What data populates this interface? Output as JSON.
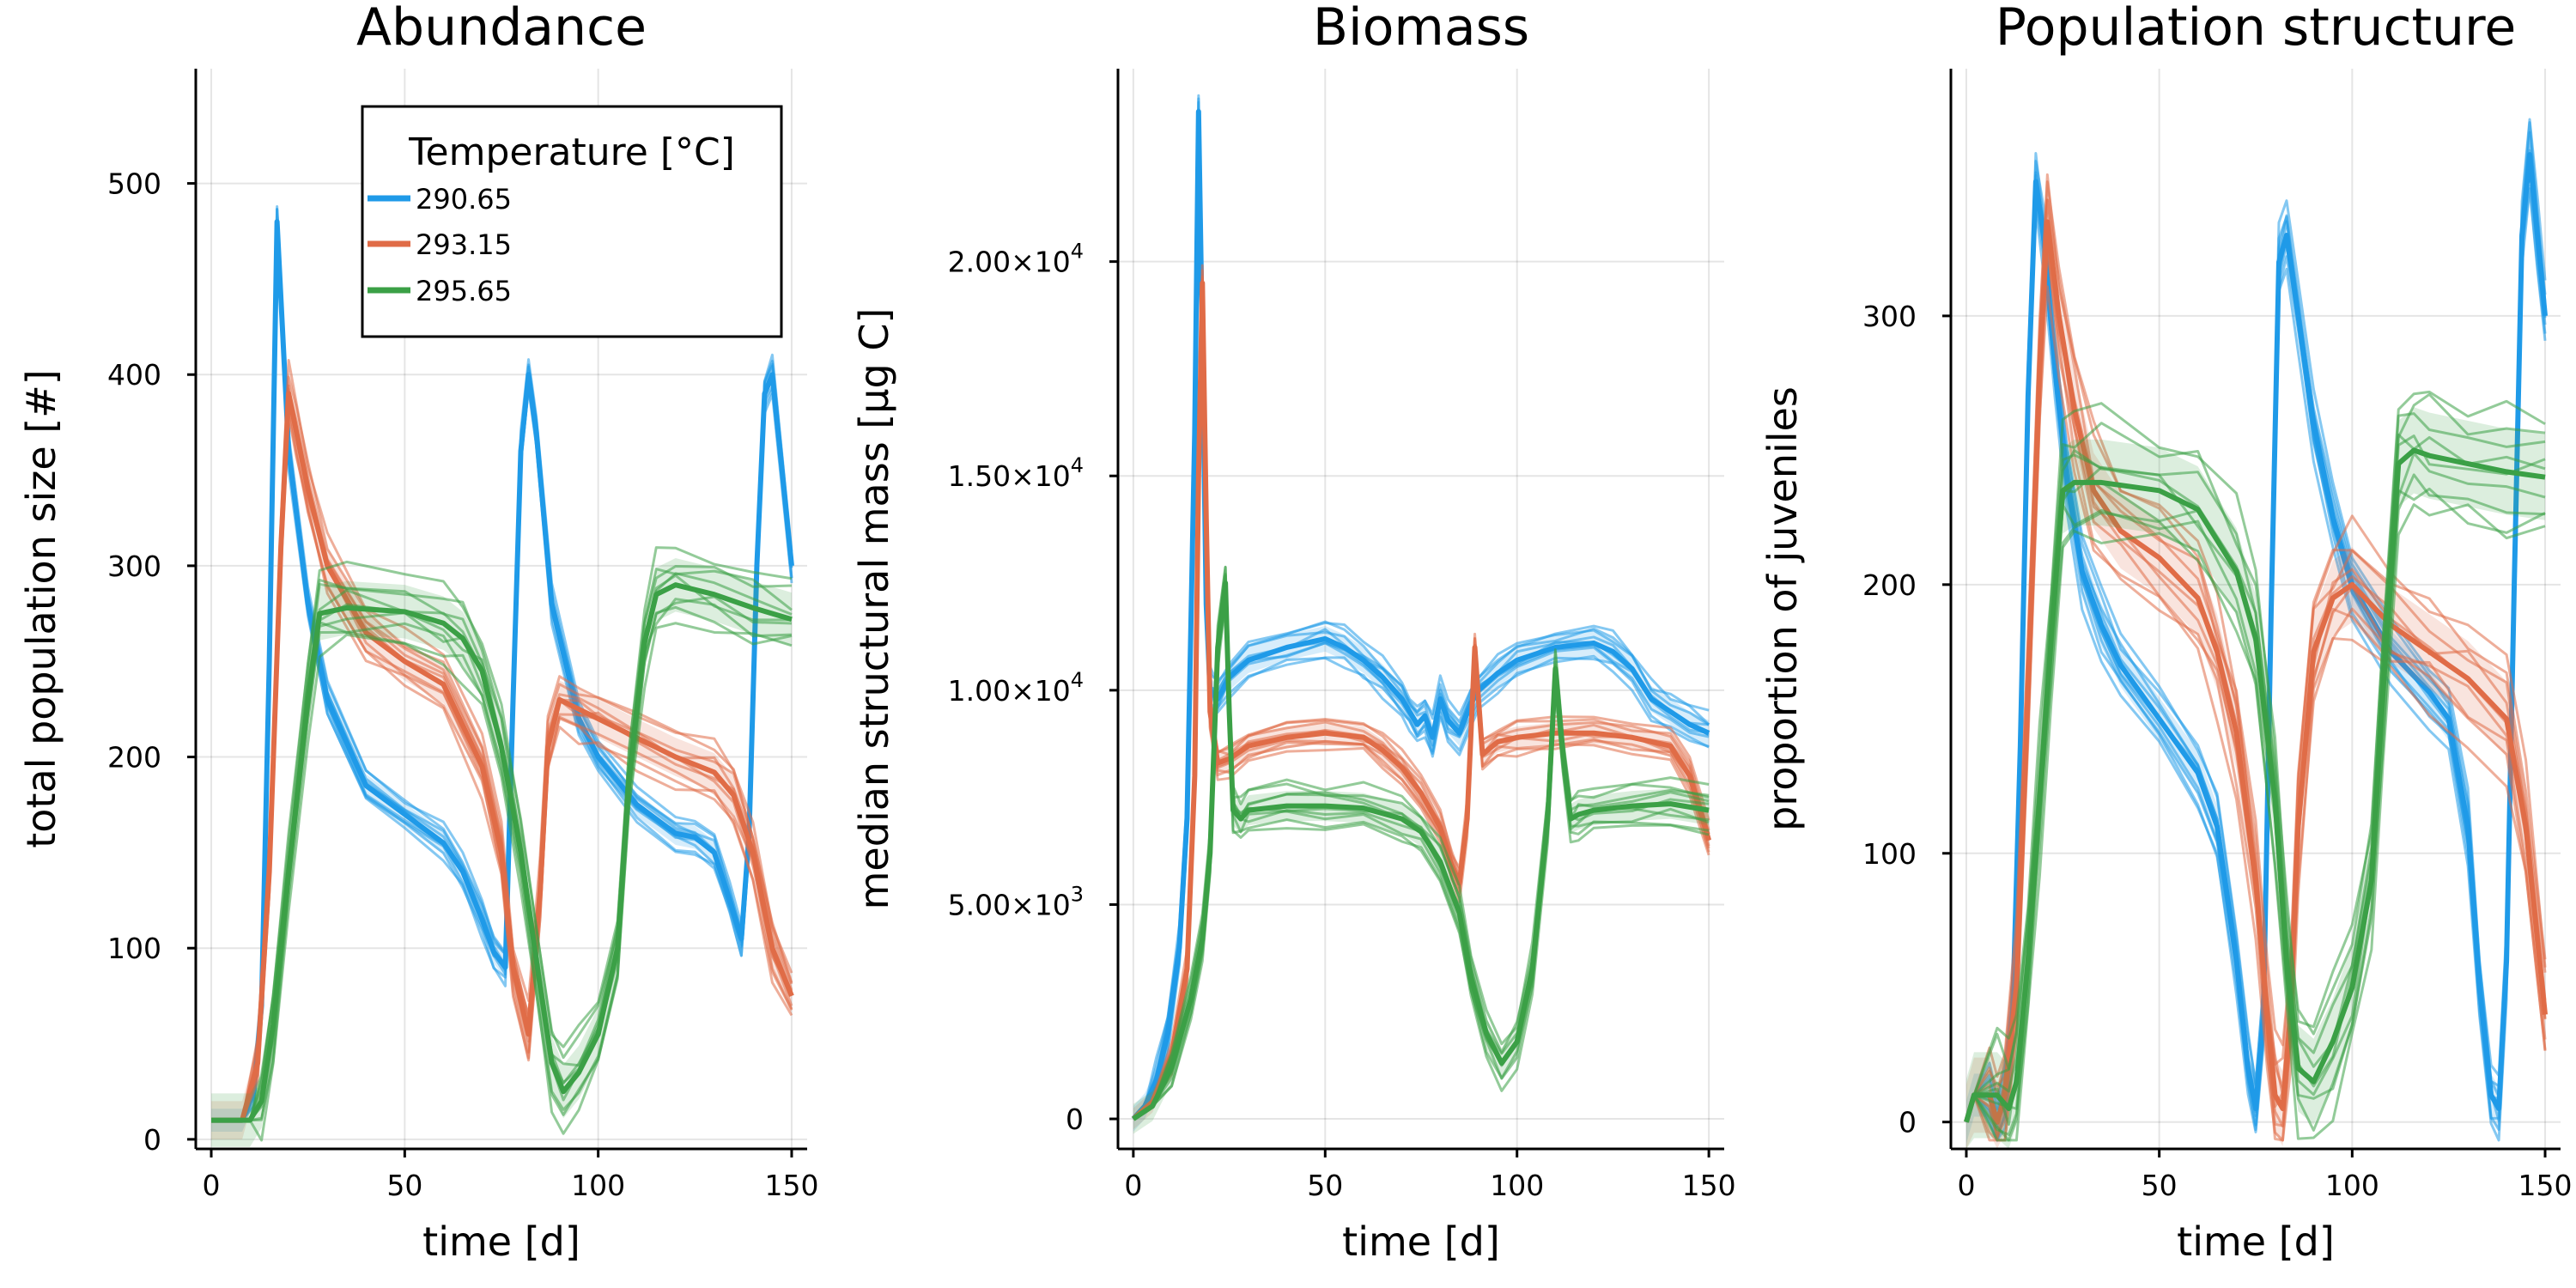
{
  "chart_data": [
    {
      "type": "line",
      "title": "Abundance",
      "xlabel": "time [d]",
      "ylabel": "total population size [#]",
      "xlim": [
        -4,
        154
      ],
      "ylim": [
        -5,
        560
      ],
      "xticks": [
        0,
        50,
        100,
        150
      ],
      "yticks": [
        0,
        100,
        200,
        300,
        400,
        500
      ],
      "ytick_labels": [
        "0",
        "100",
        "200",
        "300",
        "400",
        "500"
      ],
      "grid": true,
      "legend": {
        "title": "Temperature [°C]",
        "placement": "top-right"
      },
      "series": [
        {
          "name": "290.65",
          "color": "#1f9ae8",
          "band": 6,
          "x": [
            0,
            8,
            11,
            13,
            15,
            17,
            20,
            25,
            30,
            40,
            50,
            60,
            65,
            70,
            73,
            76,
            78,
            80,
            82,
            84,
            88,
            95,
            100,
            110,
            120,
            125,
            130,
            134,
            137,
            139,
            141,
            143,
            145,
            148,
            150
          ],
          "y": [
            10,
            10,
            25,
            70,
            250,
            480,
            360,
            280,
            230,
            185,
            170,
            155,
            140,
            115,
            98,
            90,
            230,
            360,
            400,
            370,
            280,
            220,
            200,
            175,
            160,
            158,
            150,
            125,
            105,
            160,
            300,
            390,
            400,
            340,
            300
          ]
        },
        {
          "name": "293.15",
          "color": "#e06c47",
          "band": 10,
          "x": [
            0,
            8,
            12,
            15,
            18,
            20,
            22,
            25,
            30,
            40,
            50,
            60,
            70,
            75,
            78,
            82,
            85,
            87,
            90,
            95,
            100,
            110,
            120,
            130,
            135,
            140,
            145,
            150
          ],
          "y": [
            10,
            10,
            40,
            140,
            310,
            390,
            370,
            340,
            300,
            265,
            250,
            238,
            195,
            150,
            90,
            55,
            130,
            205,
            230,
            225,
            220,
            210,
            200,
            192,
            180,
            150,
            100,
            75
          ]
        },
        {
          "name": "295.65",
          "color": "#3ba046",
          "band": 14,
          "x": [
            0,
            10,
            13,
            16,
            20,
            25,
            28,
            35,
            50,
            60,
            65,
            70,
            75,
            80,
            85,
            88,
            91,
            95,
            100,
            105,
            108,
            112,
            115,
            120,
            130,
            140,
            150
          ],
          "y": [
            10,
            10,
            20,
            60,
            140,
            230,
            275,
            278,
            276,
            270,
            262,
            245,
            205,
            150,
            80,
            40,
            25,
            35,
            55,
            100,
            190,
            260,
            285,
            290,
            285,
            278,
            272
          ]
        }
      ]
    },
    {
      "type": "line",
      "title": "Biomass",
      "xlabel": "time [d]",
      "ylabel": "median structural mass [μg C]",
      "xlim": [
        -4,
        154
      ],
      "ylim": [
        -700,
        24500
      ],
      "xticks": [
        0,
        50,
        100,
        150
      ],
      "yticks": [
        0,
        5000,
        10000,
        15000,
        20000
      ],
      "ytick_labels": [
        "0",
        "5.00×10",
        "1.00×10",
        "1.50×10",
        "2.00×10"
      ],
      "ytick_exponents": [
        "",
        "3",
        "4",
        "4",
        "4"
      ],
      "grid": true,
      "series": [
        {
          "name": "290.65",
          "color": "#1f9ae8",
          "band": 300,
          "x": [
            0,
            3,
            6,
            9,
            12,
            14,
            16,
            17,
            18,
            19,
            20,
            22,
            25,
            30,
            40,
            50,
            55,
            60,
            65,
            70,
            72,
            74,
            76,
            78,
            80,
            82,
            85,
            88,
            90,
            95,
            100,
            110,
            120,
            125,
            130,
            135,
            140,
            145,
            150
          ],
          "y": [
            0,
            300,
            900,
            2000,
            4000,
            7000,
            16000,
            23500,
            18000,
            12000,
            10000,
            9800,
            10300,
            10700,
            11000,
            11200,
            11000,
            10700,
            10300,
            9800,
            9500,
            9200,
            9400,
            8900,
            9800,
            9300,
            9000,
            9700,
            10000,
            10400,
            10700,
            11000,
            11100,
            10900,
            10500,
            9800,
            9500,
            9200,
            9000
          ]
        },
        {
          "name": "293.15",
          "color": "#e06c47",
          "band": 250,
          "x": [
            0,
            5,
            10,
            14,
            16,
            17,
            18,
            19,
            20,
            22,
            25,
            30,
            40,
            50,
            60,
            65,
            70,
            75,
            80,
            83,
            85,
            87,
            89,
            91,
            95,
            100,
            110,
            120,
            130,
            140,
            145,
            150
          ],
          "y": [
            0,
            400,
            1500,
            3500,
            8000,
            15000,
            19500,
            14000,
            9500,
            8300,
            8400,
            8700,
            8900,
            9000,
            8900,
            8600,
            8200,
            7600,
            6800,
            5900,
            5500,
            7000,
            11000,
            8500,
            8800,
            8900,
            9000,
            9000,
            8900,
            8700,
            8000,
            6500
          ]
        },
        {
          "name": "295.65",
          "color": "#3ba046",
          "band": 350,
          "x": [
            0,
            5,
            10,
            15,
            18,
            20,
            22,
            24,
            25,
            26,
            28,
            30,
            40,
            50,
            60,
            70,
            75,
            80,
            85,
            88,
            92,
            96,
            100,
            104,
            108,
            110,
            112,
            114,
            116,
            120,
            130,
            140,
            150
          ],
          "y": [
            0,
            300,
            1200,
            2800,
            4200,
            6200,
            11000,
            12500,
            9500,
            7200,
            7000,
            7200,
            7300,
            7300,
            7250,
            7000,
            6700,
            6000,
            4800,
            3300,
            2000,
            1300,
            1800,
            3500,
            7000,
            10500,
            8500,
            7000,
            7100,
            7200,
            7300,
            7350,
            7200
          ]
        }
      ]
    },
    {
      "type": "line",
      "title": "Population structure",
      "xlabel": "time [d]",
      "ylabel": "proportion of juveniles",
      "xlim": [
        -4,
        154
      ],
      "ylim": [
        -10,
        392
      ],
      "xticks": [
        0,
        50,
        100,
        150
      ],
      "yticks": [
        0,
        100,
        200,
        300
      ],
      "ytick_labels": [
        "0",
        "100",
        "200",
        "300"
      ],
      "grid": true,
      "series": [
        {
          "name": "290.65",
          "color": "#1f9ae8",
          "band": 8,
          "x": [
            0,
            2,
            6,
            8,
            10,
            12,
            14,
            16,
            18,
            20,
            23,
            26,
            30,
            35,
            40,
            50,
            60,
            65,
            70,
            73,
            75,
            77,
            79,
            81,
            83,
            86,
            90,
            95,
            100,
            110,
            120,
            125,
            130,
            133,
            136,
            138,
            140,
            142,
            144,
            146,
            148,
            150
          ],
          "y": [
            0,
            10,
            10,
            0,
            10,
            40,
            140,
            270,
            350,
            330,
            280,
            240,
            205,
            185,
            170,
            150,
            130,
            110,
            60,
            20,
            5,
            40,
            190,
            320,
            330,
            300,
            260,
            225,
            200,
            175,
            160,
            150,
            110,
            50,
            10,
            5,
            60,
            200,
            330,
            360,
            330,
            300
          ]
        },
        {
          "name": "293.15",
          "color": "#e06c47",
          "band": 14,
          "x": [
            0,
            2,
            6,
            8,
            10,
            13,
            16,
            19,
            21,
            24,
            28,
            33,
            40,
            50,
            60,
            65,
            70,
            75,
            78,
            80,
            82,
            84,
            86,
            90,
            95,
            100,
            110,
            120,
            130,
            140,
            145,
            150
          ],
          "y": [
            0,
            10,
            10,
            0,
            10,
            50,
            160,
            280,
            335,
            300,
            265,
            235,
            220,
            210,
            195,
            175,
            145,
            90,
            40,
            10,
            5,
            40,
            110,
            175,
            195,
            200,
            185,
            175,
            165,
            150,
            110,
            40
          ]
        },
        {
          "name": "295.65",
          "color": "#3ba046",
          "band": 16,
          "x": [
            0,
            2,
            8,
            11,
            13,
            16,
            19,
            22,
            25,
            28,
            35,
            50,
            60,
            70,
            75,
            80,
            83,
            86,
            90,
            95,
            100,
            105,
            108,
            112,
            116,
            120,
            130,
            140,
            150
          ],
          "y": [
            0,
            10,
            10,
            5,
            15,
            60,
            120,
            180,
            235,
            238,
            238,
            235,
            228,
            205,
            180,
            120,
            60,
            20,
            15,
            30,
            50,
            90,
            160,
            245,
            250,
            248,
            245,
            242,
            240
          ]
        }
      ]
    }
  ]
}
